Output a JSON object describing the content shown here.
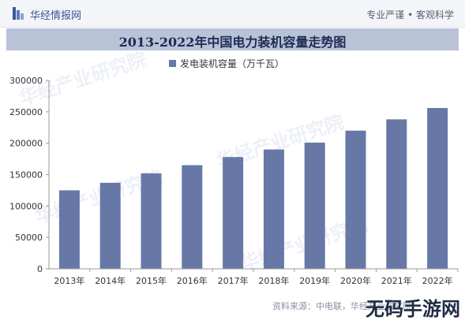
{
  "header": {
    "brand": "华经情报网",
    "tagline": "专业严谨 • 客观科学"
  },
  "chart_data": {
    "type": "bar",
    "title": "2013-2022年中国电力装机容量走势图",
    "legend": "发电装机容量（万千瓦）",
    "legend_position": "top",
    "categories": [
      "2013年",
      "2014年",
      "2015年",
      "2016年",
      "2017年",
      "2018年",
      "2019年",
      "2020年",
      "2021年",
      "2022年"
    ],
    "series": [
      {
        "name": "发电装机容量（万千瓦）",
        "values": [
          125000,
          137000,
          152000,
          165000,
          178000,
          190000,
          201000,
          220000,
          238000,
          256000
        ]
      }
    ],
    "yticks": [
      "0",
      "50000",
      "100000",
      "150000",
      "200000",
      "250000",
      "300000"
    ],
    "ylim": [
      0,
      300000
    ],
    "grid": false,
    "bar_color": "#6778a7"
  },
  "footer": {
    "source": "资料来源：中电联，华经产业研究院"
  },
  "watermark": {
    "text": "华经产业研究院"
  },
  "corner_watermark": {
    "text": "无码手游网"
  }
}
